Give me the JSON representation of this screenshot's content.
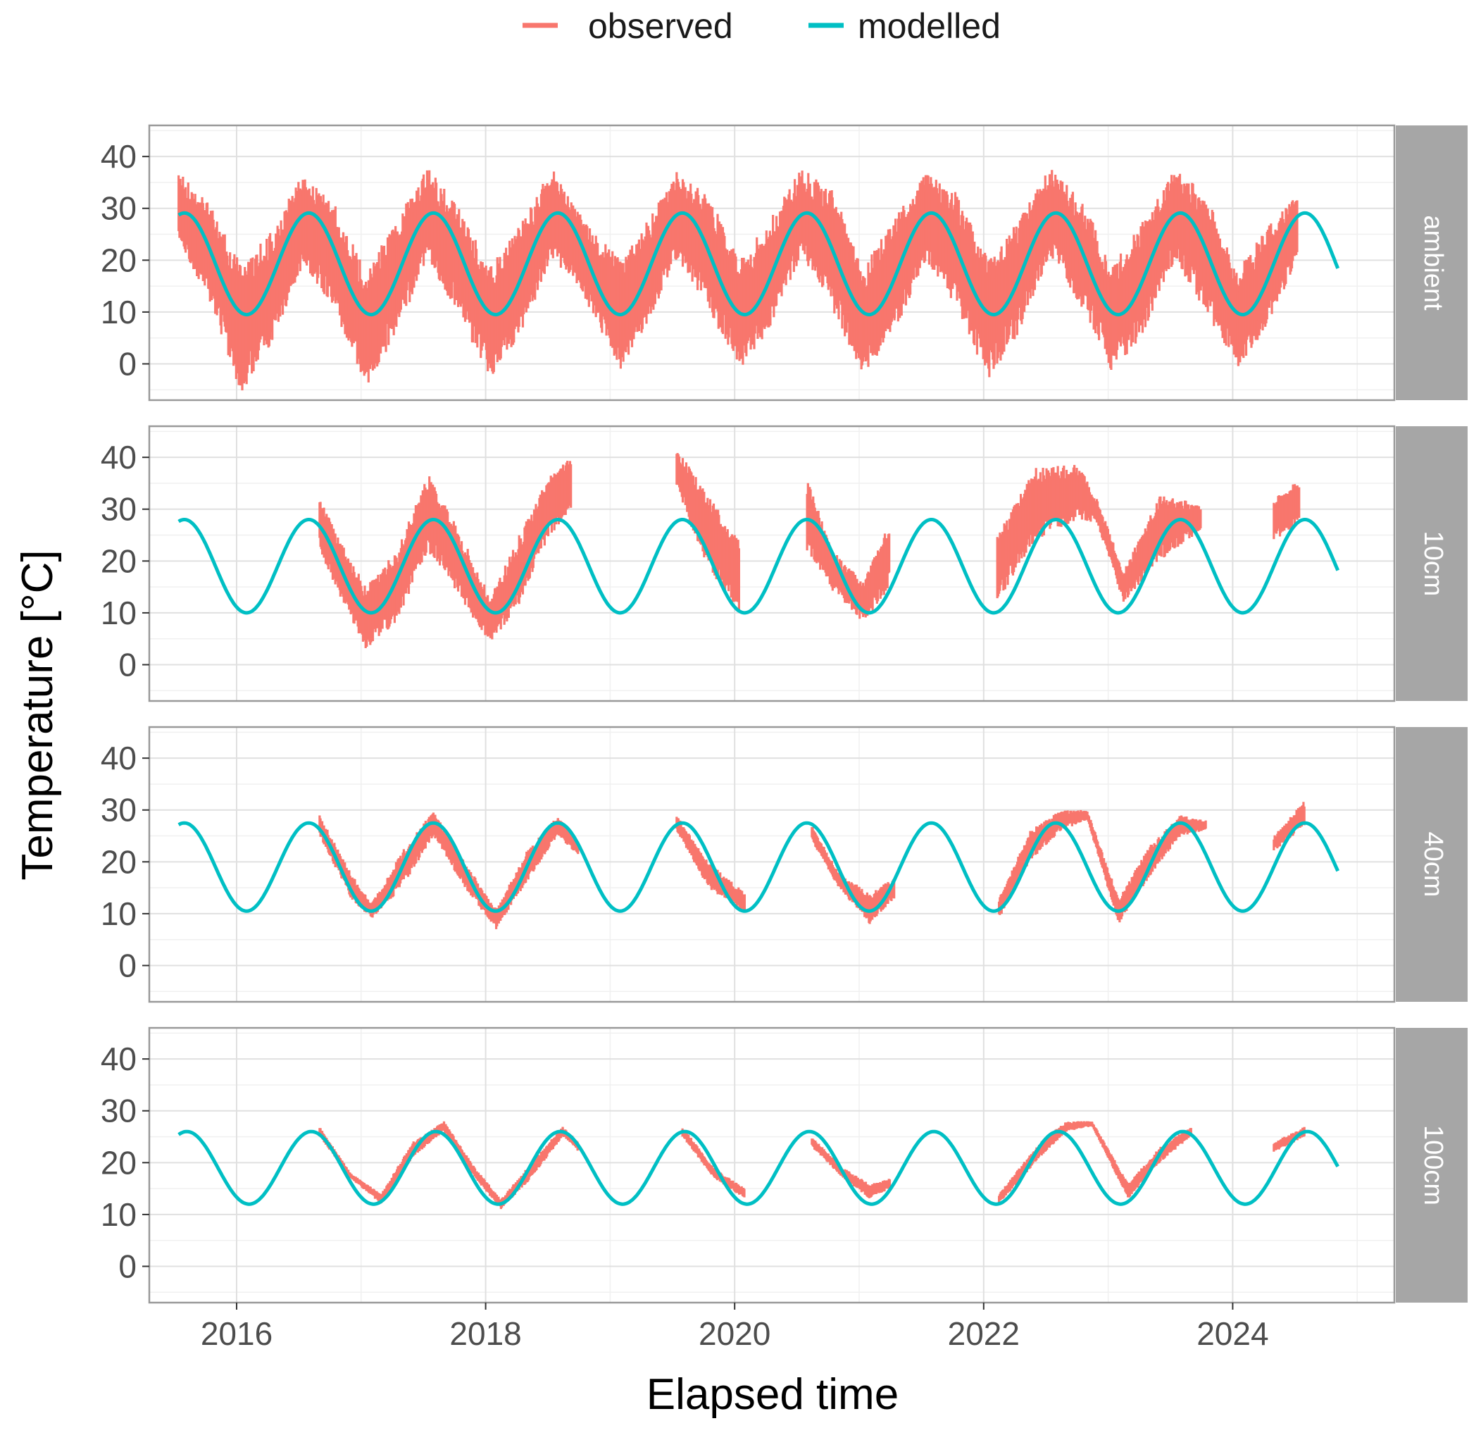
{
  "chart_data": {
    "type": "line",
    "xlabel": "Elapsed time",
    "ylabel": "Temperature [°C]",
    "xticks": [
      "2016",
      "2018",
      "2020",
      "2022",
      "2024"
    ],
    "xlim": [
      "2015-04-20",
      "2025-04-20"
    ],
    "ylim": [
      -7,
      46
    ],
    "yticks": [
      0,
      10,
      20,
      30,
      40
    ],
    "grid": true,
    "legend": {
      "position": "top",
      "entries": [
        {
          "label": "observed",
          "color": "#F8766D"
        },
        {
          "label": "modelled",
          "color": "#00BFC4"
        }
      ]
    },
    "panels": [
      {
        "label": "ambient",
        "modelled": {
          "mean": 19.3,
          "amplitude": 9.8,
          "peak_phase": 0.58,
          "start": "2015-07-15",
          "end": "2024-11-05"
        },
        "observed": {
          "upper": [
            [
              "2015-07-15",
              37
            ],
            [
              "2015-10-15",
              31
            ],
            [
              "2016-01-15",
              19
            ],
            [
              "2016-04-15",
              26
            ],
            [
              "2016-07-15",
              37
            ],
            [
              "2016-10-15",
              31
            ],
            [
              "2017-01-15",
              18
            ],
            [
              "2017-04-15",
              28
            ],
            [
              "2017-07-15",
              38
            ],
            [
              "2017-10-15",
              30
            ],
            [
              "2018-01-15",
              19
            ],
            [
              "2018-04-15",
              27
            ],
            [
              "2018-07-15",
              38
            ],
            [
              "2018-09-20",
              30
            ],
            [
              "2019-02-01",
              20
            ],
            [
              "2019-04-15",
              27
            ],
            [
              "2019-07-15",
              37
            ],
            [
              "2019-10-15",
              33
            ],
            [
              "2020-01-15",
              20
            ],
            [
              "2020-04-15",
              28
            ],
            [
              "2020-07-15",
              38
            ],
            [
              "2020-10-15",
              34
            ],
            [
              "2021-01-15",
              19
            ],
            [
              "2021-04-15",
              28
            ],
            [
              "2021-07-15",
              37
            ],
            [
              "2021-10-15",
              33
            ],
            [
              "2022-01-15",
              20
            ],
            [
              "2022-04-15",
              28
            ],
            [
              "2022-07-15",
              38
            ],
            [
              "2022-10-15",
              32
            ],
            [
              "2023-01-15",
              19
            ],
            [
              "2023-04-15",
              28
            ],
            [
              "2023-07-15",
              38
            ],
            [
              "2023-10-15",
              33
            ],
            [
              "2024-01-15",
              18
            ],
            [
              "2024-04-15",
              27
            ],
            [
              "2024-07-10",
              33
            ]
          ],
          "lower": [
            [
              "2015-07-15",
              23
            ],
            [
              "2015-10-15",
              12
            ],
            [
              "2016-01-15",
              -6
            ],
            [
              "2016-04-15",
              4
            ],
            [
              "2016-07-15",
              19
            ],
            [
              "2016-10-15",
              10
            ],
            [
              "2017-01-15",
              -5
            ],
            [
              "2017-04-15",
              6
            ],
            [
              "2017-07-15",
              20
            ],
            [
              "2017-10-15",
              9
            ],
            [
              "2018-01-15",
              -3
            ],
            [
              "2018-04-15",
              6
            ],
            [
              "2018-07-15",
              20
            ],
            [
              "2018-09-20",
              16
            ],
            [
              "2019-02-01",
              -1
            ],
            [
              "2019-04-15",
              7
            ],
            [
              "2019-07-15",
              20
            ],
            [
              "2019-10-15",
              11
            ],
            [
              "2020-01-15",
              -2
            ],
            [
              "2020-04-15",
              7
            ],
            [
              "2020-07-15",
              21
            ],
            [
              "2020-10-15",
              10
            ],
            [
              "2021-01-15",
              -3
            ],
            [
              "2021-04-15",
              6
            ],
            [
              "2021-07-15",
              20
            ],
            [
              "2021-10-15",
              10
            ],
            [
              "2022-01-15",
              -3
            ],
            [
              "2022-04-15",
              6
            ],
            [
              "2022-07-15",
              21
            ],
            [
              "2022-10-15",
              11
            ],
            [
              "2023-01-15",
              -2
            ],
            [
              "2023-04-15",
              6
            ],
            [
              "2023-07-15",
              20
            ],
            [
              "2023-10-15",
              10
            ],
            [
              "2024-01-15",
              -1
            ],
            [
              "2024-04-15",
              7
            ],
            [
              "2024-07-10",
              20
            ]
          ]
        }
      },
      {
        "label": "10cm",
        "modelled": {
          "mean": 19.0,
          "amplitude": 9.0,
          "peak_phase": 0.58,
          "start": "2015-07-15",
          "end": "2024-11-05"
        },
        "observed": {
          "upper": [
            [
              "2016-09-01",
              32
            ],
            [
              "2016-11-01",
              24
            ],
            [
              "2017-01-15",
              15
            ],
            [
              "2017-04-15",
              22
            ],
            [
              "2017-07-15",
              37
            ],
            [
              "2017-10-15",
              26
            ],
            [
              "2018-01-15",
              13
            ],
            [
              "2018-04-15",
              26
            ],
            [
              "2018-07-01",
              36
            ],
            [
              "2018-09-10",
              41
            ],
            [
              "2019-07-15",
              42
            ],
            [
              "2019-10-01",
              34
            ],
            [
              "2020-01-15",
              24
            ],
            [
              "2020-08-01",
              36
            ],
            [
              "2020-10-15",
              22
            ],
            [
              "2021-01-15",
              16
            ],
            [
              "2021-04-01",
              28
            ],
            [
              "2022-02-10",
              25
            ],
            [
              "2022-06-01",
              38
            ],
            [
              "2022-10-01",
              39
            ],
            [
              "2022-12-01",
              32
            ],
            [
              "2023-02-15",
              18
            ],
            [
              "2023-06-01",
              33
            ],
            [
              "2023-10-01",
              31
            ],
            [
              "2024-05-01",
              32
            ],
            [
              "2024-07-15",
              36
            ]
          ],
          "lower": [
            [
              "2016-09-01",
              22
            ],
            [
              "2016-11-01",
              13
            ],
            [
              "2017-01-15",
              3
            ],
            [
              "2017-04-15",
              8
            ],
            [
              "2017-07-15",
              22
            ],
            [
              "2017-10-15",
              13
            ],
            [
              "2018-01-15",
              4
            ],
            [
              "2018-04-15",
              12
            ],
            [
              "2018-07-01",
              24
            ],
            [
              "2018-09-10",
              30
            ],
            [
              "2019-07-15",
              34
            ],
            [
              "2019-10-01",
              20
            ],
            [
              "2020-01-15",
              10
            ],
            [
              "2020-08-01",
              22
            ],
            [
              "2020-10-15",
              14
            ],
            [
              "2021-01-15",
              8
            ],
            [
              "2021-04-01",
              15
            ],
            [
              "2022-02-10",
              12
            ],
            [
              "2022-06-01",
              24
            ],
            [
              "2022-10-01",
              28
            ],
            [
              "2022-12-01",
              27
            ],
            [
              "2023-02-15",
              12
            ],
            [
              "2023-06-01",
              20
            ],
            [
              "2023-10-01",
              26
            ],
            [
              "2024-05-01",
              24
            ],
            [
              "2024-07-15",
              27
            ]
          ]
        }
      },
      {
        "label": "40cm",
        "modelled": {
          "mean": 19.0,
          "amplitude": 8.5,
          "peak_phase": 0.58,
          "start": "2015-07-15",
          "end": "2024-11-05"
        },
        "observed": {
          "upper": [
            [
              "2016-09-01",
              29
            ],
            [
              "2016-12-01",
              18
            ],
            [
              "2017-02-01",
              12
            ],
            [
              "2017-05-01",
              22
            ],
            [
              "2017-08-01",
              30
            ],
            [
              "2017-11-01",
              20
            ],
            [
              "2018-02-01",
              11
            ],
            [
              "2018-05-01",
              22
            ],
            [
              "2018-08-01",
              29
            ],
            [
              "2018-10-01",
              24
            ],
            [
              "2019-07-15",
              29
            ],
            [
              "2019-10-15",
              20
            ],
            [
              "2020-02-01",
              14
            ],
            [
              "2020-08-15",
              27
            ],
            [
              "2020-11-01",
              18
            ],
            [
              "2021-02-01",
              14
            ],
            [
              "2021-04-15",
              17
            ],
            [
              "2022-02-15",
              13
            ],
            [
              "2022-05-15",
              26
            ],
            [
              "2022-08-15",
              30
            ],
            [
              "2022-11-01",
              30
            ],
            [
              "2023-02-01",
              13
            ],
            [
              "2023-05-01",
              23
            ],
            [
              "2023-08-01",
              29
            ],
            [
              "2023-10-15",
              28
            ],
            [
              "2024-05-01",
              25
            ],
            [
              "2024-08-01",
              32
            ]
          ],
          "lower": [
            [
              "2016-09-01",
              25
            ],
            [
              "2016-12-01",
              13
            ],
            [
              "2017-02-01",
              9
            ],
            [
              "2017-05-01",
              15
            ],
            [
              "2017-08-01",
              25
            ],
            [
              "2017-11-01",
              15
            ],
            [
              "2018-02-01",
              7
            ],
            [
              "2018-05-01",
              16
            ],
            [
              "2018-08-01",
              25
            ],
            [
              "2018-10-01",
              21
            ],
            [
              "2019-07-15",
              26
            ],
            [
              "2019-10-15",
              15
            ],
            [
              "2020-02-01",
              10
            ],
            [
              "2020-08-15",
              24
            ],
            [
              "2020-11-01",
              15
            ],
            [
              "2021-02-01",
              8
            ],
            [
              "2021-04-15",
              13
            ],
            [
              "2022-02-15",
              9
            ],
            [
              "2022-05-15",
              20
            ],
            [
              "2022-08-15",
              26
            ],
            [
              "2022-11-01",
              28
            ],
            [
              "2023-02-01",
              8
            ],
            [
              "2023-05-01",
              17
            ],
            [
              "2023-08-01",
              25
            ],
            [
              "2023-10-15",
              26
            ],
            [
              "2024-05-01",
              22
            ],
            [
              "2024-08-01",
              27
            ]
          ]
        }
      },
      {
        "label": "100cm",
        "modelled": {
          "mean": 19.0,
          "amplitude": 7.0,
          "peak_phase": 0.6,
          "start": "2015-07-15",
          "end": "2024-11-05"
        },
        "observed": {
          "upper": [
            [
              "2016-09-01",
              27
            ],
            [
              "2016-12-01",
              18
            ],
            [
              "2017-03-01",
              14
            ],
            [
              "2017-06-01",
              24
            ],
            [
              "2017-09-01",
              28
            ],
            [
              "2017-12-01",
              19
            ],
            [
              "2018-02-15",
              13
            ],
            [
              "2018-05-15",
              20
            ],
            [
              "2018-08-15",
              27
            ],
            [
              "2018-10-01",
              24
            ],
            [
              "2019-08-01",
              27
            ],
            [
              "2019-11-01",
              19
            ],
            [
              "2020-02-01",
              15
            ],
            [
              "2020-08-15",
              25
            ],
            [
              "2020-11-15",
              19
            ],
            [
              "2021-02-01",
              16
            ],
            [
              "2021-04-01",
              17
            ],
            [
              "2022-02-15",
              14
            ],
            [
              "2022-06-15",
              24
            ],
            [
              "2022-09-01",
              28
            ],
            [
              "2022-11-15",
              28
            ],
            [
              "2023-03-01",
              16
            ],
            [
              "2023-06-01",
              23
            ],
            [
              "2023-09-01",
              27
            ],
            [
              "2024-05-01",
              24
            ],
            [
              "2024-08-01",
              27
            ]
          ],
          "lower": [
            [
              "2016-09-01",
              25
            ],
            [
              "2016-12-01",
              17
            ],
            [
              "2017-03-01",
              12
            ],
            [
              "2017-06-01",
              21
            ],
            [
              "2017-09-01",
              26
            ],
            [
              "2017-12-01",
              17
            ],
            [
              "2018-02-15",
              11
            ],
            [
              "2018-05-15",
              17
            ],
            [
              "2018-08-15",
              25
            ],
            [
              "2018-10-01",
              22
            ],
            [
              "2019-08-01",
              25
            ],
            [
              "2019-11-01",
              17
            ],
            [
              "2020-02-01",
              13
            ],
            [
              "2020-08-15",
              23
            ],
            [
              "2020-11-15",
              17
            ],
            [
              "2021-02-01",
              13
            ],
            [
              "2021-04-01",
              15
            ],
            [
              "2022-02-15",
              12
            ],
            [
              "2022-06-15",
              21
            ],
            [
              "2022-09-01",
              26
            ],
            [
              "2022-11-15",
              27
            ],
            [
              "2023-03-01",
              13
            ],
            [
              "2023-06-01",
              20
            ],
            [
              "2023-09-01",
              25
            ],
            [
              "2024-05-01",
              22
            ],
            [
              "2024-08-01",
              25
            ]
          ]
        }
      }
    ]
  }
}
